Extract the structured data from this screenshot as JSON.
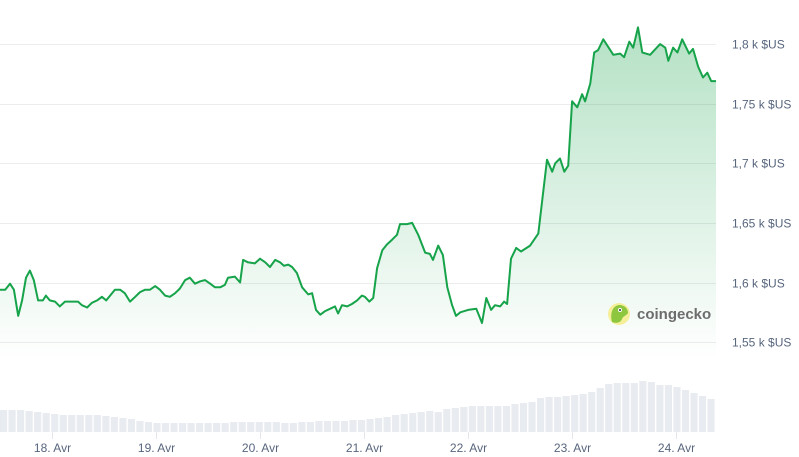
{
  "chart_data": {
    "type": "area",
    "title": "",
    "xlabel": "",
    "ylabel": "",
    "grid": true,
    "line_color": "#16a34a",
    "fill_color": "#16a34a",
    "volume_color": "#e8ebf0",
    "ylim": [
      1535,
      1837
    ],
    "xlim": [
      "04-17 12:00",
      "04-24 09:12"
    ],
    "y_ticks": [
      {
        "value": 1800,
        "label": "1,8 k $US"
      },
      {
        "value": 1750,
        "label": "1,75 k $US"
      },
      {
        "value": 1700,
        "label": "1,7 k $US"
      },
      {
        "value": 1650,
        "label": "1,65 k $US"
      },
      {
        "value": 1600,
        "label": "1,6 k $US"
      },
      {
        "value": 1550,
        "label": "1,55 k $US"
      }
    ],
    "x_ticks": [
      {
        "value": "04-18 00:00",
        "label": "18. Avr"
      },
      {
        "value": "04-19 00:00",
        "label": "19. Avr"
      },
      {
        "value": "04-20 00:00",
        "label": "20. Avr"
      },
      {
        "value": "04-21 00:00",
        "label": "21. Avr"
      },
      {
        "value": "04-22 00:00",
        "label": "22. Avr"
      },
      {
        "value": "04-23 00:00",
        "label": "23. Avr"
      },
      {
        "value": "04-24 00:00",
        "label": "24. Avr"
      }
    ],
    "series": [
      {
        "x": [
          "04-17 12:00",
          "04-17 13:12",
          "04-17 14:18",
          "04-17 15:12",
          "04-17 16:12",
          "04-17 17:06",
          "04-17 18:00",
          "04-17 18:54",
          "04-17 19:48",
          "04-17 20:48",
          "04-17 21:54",
          "04-17 22:36",
          "04-17 23:30",
          "04-18 00:42",
          "04-18 01:48",
          "04-18 03:00",
          "04-18 04:36",
          "04-18 06:00",
          "04-18 06:54",
          "04-18 08:06",
          "04-18 09:12",
          "04-18 10:24",
          "04-18 11:30",
          "04-18 12:30",
          "04-18 13:24",
          "04-18 14:30",
          "04-18 15:42",
          "04-18 16:48",
          "04-18 18:00",
          "04-18 19:12",
          "04-18 20:18",
          "04-18 21:30",
          "04-18 22:36",
          "04-18 23:48",
          "04-19 00:54",
          "04-19 02:06",
          "04-19 03:12",
          "04-19 04:24",
          "04-19 05:30",
          "04-19 06:42",
          "04-19 07:48",
          "04-19 09:00",
          "04-19 10:12",
          "04-19 11:18",
          "04-19 12:30",
          "04-19 13:36",
          "04-19 14:48",
          "04-19 15:54",
          "04-19 16:36",
          "04-19 18:12",
          "04-19 19:24",
          "04-19 20:06",
          "04-19 21:12",
          "04-19 22:48",
          "04-20 00:00",
          "04-20 01:12",
          "04-20 02:18",
          "04-20 03:30",
          "04-20 04:36",
          "04-20 05:30",
          "04-20 06:30",
          "04-20 07:24",
          "04-20 08:30",
          "04-20 09:42",
          "04-20 11:06",
          "04-20 12:00",
          "04-20 12:54",
          "04-20 13:54",
          "04-20 15:00",
          "04-20 16:12",
          "04-20 17:18",
          "04-20 18:00",
          "04-20 18:54",
          "04-20 20:06",
          "04-20 21:12",
          "04-20 22:24",
          "04-20 23:30",
          "04-21 00:12",
          "04-21 01:12",
          "04-21 02:06",
          "04-21 03:00",
          "04-21 04:12",
          "04-21 05:18",
          "04-21 06:30",
          "04-21 07:36",
          "04-21 08:18",
          "04-21 09:54",
          "04-21 11:06",
          "04-21 12:30",
          "04-21 14:06",
          "04-21 15:12",
          "04-21 15:54",
          "04-21 17:06",
          "04-21 18:12",
          "04-21 19:12",
          "04-21 20:18",
          "04-21 21:12",
          "04-21 22:12",
          "04-22 00:00",
          "04-22 01:54",
          "04-22 03:12",
          "04-22 04:12",
          "04-22 05:18",
          "04-22 06:12",
          "04-22 07:24",
          "04-22 08:18",
          "04-22 09:00",
          "04-22 09:54",
          "04-22 11:06",
          "04-22 12:12",
          "04-22 14:18",
          "04-22 16:12",
          "04-22 18:12",
          "04-22 19:24",
          "04-22 20:06",
          "04-22 21:12",
          "04-22 22:12",
          "04-22 23:06",
          "04-23 00:00",
          "04-23 01:12",
          "04-23 02:18",
          "04-23 03:00",
          "04-23 04:12",
          "04-23 05:06",
          "04-23 06:00",
          "04-23 07:12",
          "04-23 09:30",
          "04-23 11:06",
          "04-23 12:00",
          "04-23 13:12",
          "04-23 14:06",
          "04-23 15:12",
          "04-23 16:12",
          "04-23 18:00",
          "04-23 20:18",
          "04-23 21:30",
          "04-23 22:12",
          "04-23 23:18",
          "04-24 00:18",
          "04-24 01:24",
          "04-24 03:00",
          "04-24 03:54",
          "04-24 05:06",
          "04-24 06:12",
          "04-24 07:12",
          "04-24 08:06",
          "04-24 09:12"
        ],
        "y": [
          1594,
          1594,
          1599,
          1594,
          1572,
          1585,
          1604,
          1610,
          1602,
          1585,
          1585,
          1589,
          1585,
          1584,
          1580,
          1584,
          1584,
          1584,
          1581,
          1579,
          1583,
          1585,
          1588,
          1585,
          1589,
          1594,
          1594,
          1591,
          1584,
          1588,
          1592,
          1594,
          1594,
          1597,
          1594,
          1589,
          1588,
          1591,
          1595,
          1602,
          1604,
          1599,
          1601,
          1602,
          1599,
          1596,
          1596,
          1598,
          1604,
          1605,
          1600,
          1619,
          1617,
          1616,
          1620,
          1617,
          1613,
          1619,
          1617,
          1614,
          1615,
          1613,
          1608,
          1596,
          1590,
          1591,
          1577,
          1573,
          1576,
          1578,
          1580,
          1574,
          1581,
          1580,
          1582,
          1585,
          1589,
          1588,
          1584,
          1587,
          1612,
          1627,
          1632,
          1636,
          1640,
          1649,
          1649,
          1650,
          1640,
          1625,
          1624,
          1619,
          1631,
          1623,
          1596,
          1581,
          1572,
          1575,
          1577,
          1578,
          1566,
          1587,
          1577,
          1581,
          1580,
          1584,
          1582,
          1620,
          1629,
          1626,
          1631,
          1641,
          1703,
          1693,
          1700,
          1704,
          1693,
          1698,
          1752,
          1747,
          1758,
          1752,
          1767,
          1793,
          1795,
          1804,
          1791,
          1792,
          1789,
          1802,
          1797,
          1814,
          1793,
          1791,
          1800,
          1797,
          1786,
          1797,
          1793,
          1804,
          1792,
          1796,
          1781,
          1772,
          1776,
          1769,
          1769
        ]
      }
    ],
    "volume_relative": [
      22,
      22,
      22,
      21,
      20,
      19,
      18,
      17,
      17,
      17,
      17,
      17,
      16,
      15,
      14,
      13,
      11,
      10,
      9,
      9,
      9,
      9,
      9,
      9,
      9,
      9,
      9,
      10,
      10,
      10,
      10,
      10,
      10,
      9,
      9,
      10,
      10,
      11,
      11,
      11,
      11,
      12,
      12,
      13,
      14,
      15,
      17,
      18,
      19,
      20,
      21,
      20,
      23,
      24,
      25,
      26,
      26,
      26,
      26,
      26,
      28,
      29,
      30,
      34,
      35,
      35,
      36,
      37,
      38,
      40,
      44,
      48,
      49,
      49,
      49,
      51,
      50,
      47,
      47,
      45,
      42,
      39,
      36,
      33
    ]
  },
  "watermark": {
    "brand": "coingecko",
    "logo": "coingecko-gecko-logo"
  }
}
